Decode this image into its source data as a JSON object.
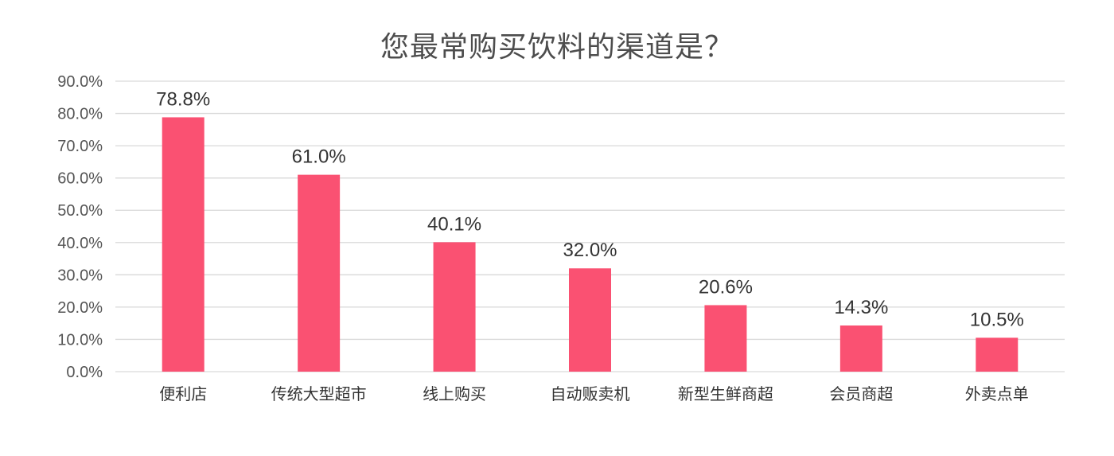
{
  "chart_data": {
    "type": "bar",
    "title": "您最常购买饮料的渠道是？",
    "categories": [
      "便利店",
      "传统大型超市",
      "线上购买",
      "自动贩卖机",
      "新型生鲜商超",
      "会员商超",
      "外卖点单"
    ],
    "values": [
      78.8,
      61.0,
      40.1,
      32.0,
      20.6,
      14.3,
      10.5
    ],
    "data_labels": [
      "78.8%",
      "61.0%",
      "40.1%",
      "32.0%",
      "20.6%",
      "14.3%",
      "10.5%"
    ],
    "ylim": [
      0,
      90
    ],
    "y_ticks": [
      0,
      10,
      20,
      30,
      40,
      50,
      60,
      70,
      80,
      90
    ],
    "y_tick_labels": [
      "0.0%",
      "10.0%",
      "20.0%",
      "30.0%",
      "40.0%",
      "50.0%",
      "60.0%",
      "70.0%",
      "80.0%",
      "90.0%"
    ],
    "xlabel": "",
    "ylabel": "",
    "grid": true,
    "legend": "none",
    "bar_color": "#fa5172"
  }
}
